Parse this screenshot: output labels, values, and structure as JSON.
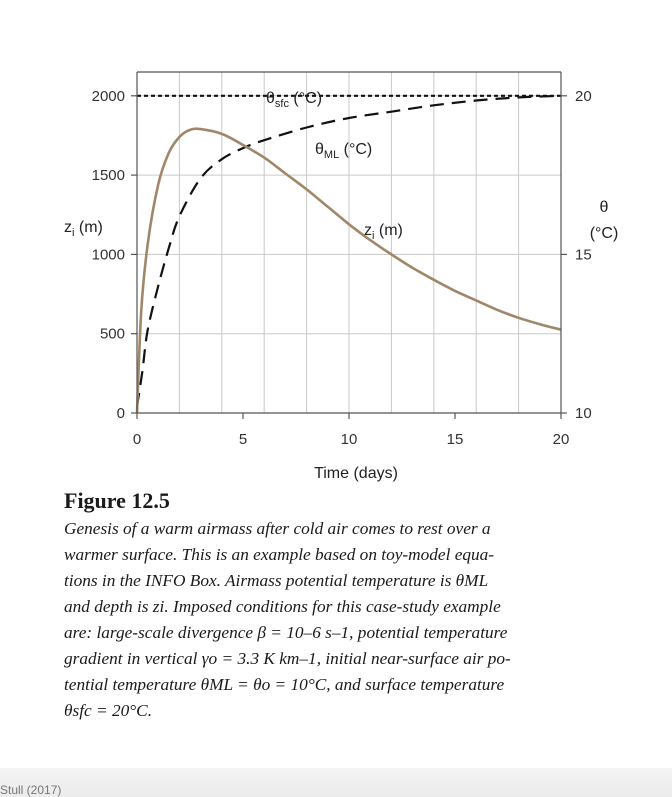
{
  "chart_data": {
    "type": "line",
    "xlabel": "Time (days)",
    "x_ticks": [
      "0",
      "5",
      "10",
      "15",
      "20"
    ],
    "xlim": [
      0,
      20
    ],
    "y_left": {
      "label_main": "z",
      "label_sub": "i",
      "label_units": " (m)",
      "ylim": [
        0,
        2150
      ],
      "ticks": [
        "0",
        "500",
        "1000",
        "1500",
        "2000"
      ]
    },
    "y_right": {
      "label_symbol": "θ",
      "label_units": "(°C)",
      "ylim": [
        10,
        20.75
      ],
      "ticks": [
        "10",
        "15",
        "20"
      ]
    },
    "series": [
      {
        "name": "θsfc (°C)",
        "axis": "right",
        "style": "dotted",
        "color": "#111111",
        "x": [
          0,
          20
        ],
        "y": [
          20,
          20
        ]
      },
      {
        "name": "θML (°C)",
        "axis": "right",
        "style": "dashed",
        "color": "#111111",
        "x": [
          0,
          0.25,
          0.5,
          1,
          1.5,
          2,
          3,
          4,
          5,
          6,
          8,
          10,
          12,
          14,
          16,
          18,
          20
        ],
        "y": [
          10.2,
          11.3,
          12.6,
          14.0,
          15.2,
          16.2,
          17.4,
          18.0,
          18.35,
          18.6,
          19.0,
          19.3,
          19.5,
          19.7,
          19.85,
          19.95,
          20.0
        ]
      },
      {
        "name": "zi (m)",
        "axis": "left",
        "style": "solid",
        "color": "#a0876a",
        "x": [
          0,
          0.2,
          0.5,
          1,
          1.5,
          2,
          2.5,
          3,
          4,
          5,
          6,
          7,
          8,
          9,
          10,
          11,
          12,
          13,
          14,
          15,
          16,
          17,
          18,
          19,
          20
        ],
        "y": [
          0,
          640,
          1060,
          1440,
          1640,
          1740,
          1785,
          1790,
          1760,
          1690,
          1610,
          1510,
          1410,
          1300,
          1190,
          1090,
          1000,
          915,
          840,
          770,
          710,
          650,
          600,
          560,
          525
        ]
      }
    ],
    "annotations": [
      {
        "main": "θ",
        "sub": "sfc",
        "rest": " (°C)"
      },
      {
        "main": "θ",
        "sub": "ML",
        "rest": " (°C)"
      },
      {
        "main": "z",
        "sub": "i",
        "rest": " (m)"
      }
    ],
    "grid": true
  },
  "figure": {
    "label": "Figure 12.5",
    "caption": [
      "Genesis of a warm airmass after cold air comes to rest over a",
      "warmer surface.  This is an example based on toy-model equa-",
      "tions in the INFO Box.  Airmass potential temperature is θML",
      "and depth is zi.  Imposed conditions for this case-study example",
      "are: large-scale divergence β = 10–6 s–1, potential temperature",
      "gradient in vertical  γo = 3.3 K km–1, initial near-surface air po-",
      "tential temperature θML =  θo = 10°C, and surface temperature",
      "θsfc = 20°C."
    ]
  },
  "footer": {
    "source": "Stull (2017)"
  }
}
